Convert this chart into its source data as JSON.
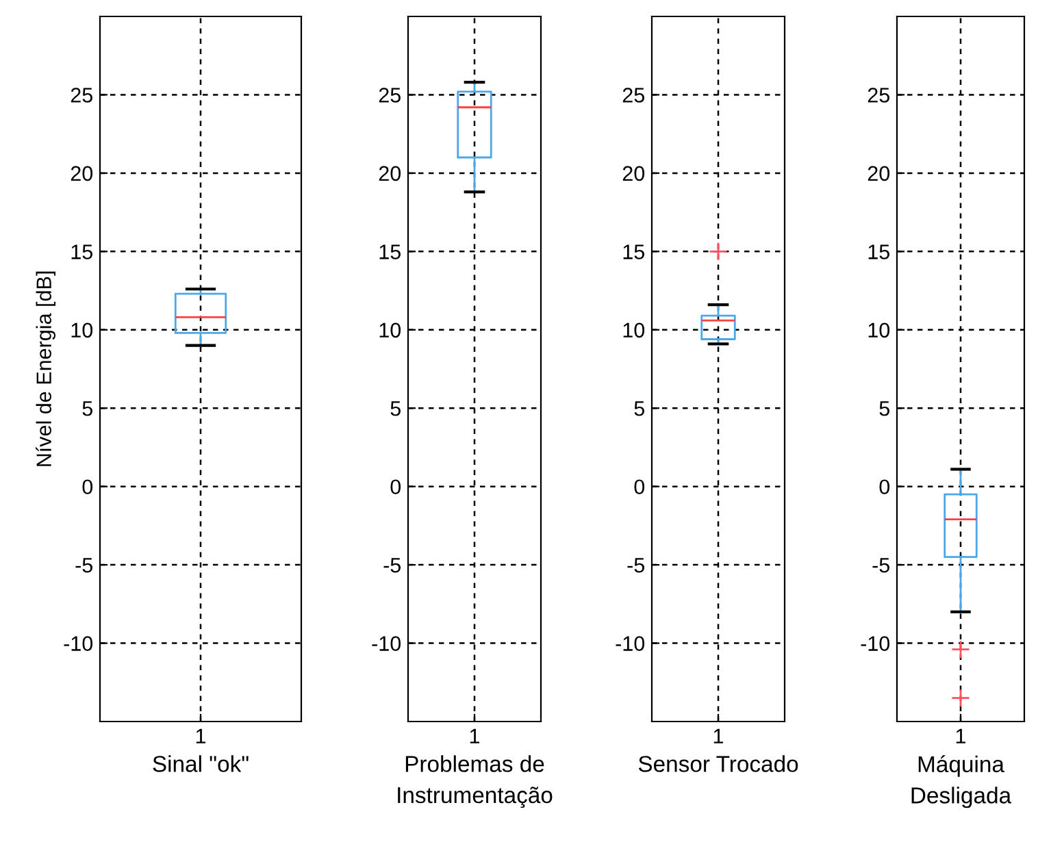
{
  "chart_data": [
    {
      "type": "box",
      "categories": [
        "1"
      ],
      "xlabel": "Sinal \"ok\"",
      "ylabel": "Nível de Energia [dB]",
      "ylim": [
        -15,
        30
      ],
      "yticks": [
        -10,
        -5,
        0,
        5,
        10,
        15,
        20,
        25
      ],
      "grid": true,
      "series": [
        {
          "color": "#4aa8e8",
          "boxes": [
            {
              "low": 9.0,
              "q1": 9.8,
              "median": 10.8,
              "q3": 12.3,
              "high": 12.6
            }
          ]
        }
      ]
    },
    {
      "type": "box",
      "categories": [
        "1"
      ],
      "xlabel": "Problemas de\nInstrumentação",
      "ylim": [
        -15,
        30
      ],
      "yticks": [
        -10,
        -5,
        0,
        5,
        10,
        15,
        20,
        25
      ],
      "grid": true,
      "series": [
        {
          "color": "#4aa8e8",
          "boxes": [
            {
              "low": 18.8,
              "q1": 21.0,
              "median": 24.2,
              "q3": 25.2,
              "high": 25.8
            }
          ]
        }
      ]
    },
    {
      "type": "box",
      "categories": [
        "1"
      ],
      "xlabel": "Sensor Trocado",
      "ylim": [
        -15,
        30
      ],
      "yticks": [
        -10,
        -5,
        0,
        5,
        10,
        15,
        20,
        25
      ],
      "grid": true,
      "series": [
        {
          "color": "#4aa8e8",
          "boxes": [
            {
              "low": 9.1,
              "q1": 9.4,
              "median": 10.6,
              "q3": 10.9,
              "high": 11.6,
              "outliers": [
                15.0
              ]
            }
          ]
        }
      ]
    },
    {
      "type": "box",
      "categories": [
        "1"
      ],
      "xlabel": "Máquina\nDesligada",
      "ylim": [
        -15,
        30
      ],
      "yticks": [
        -10,
        -5,
        0,
        5,
        10,
        15,
        20,
        25
      ],
      "grid": true,
      "series": [
        {
          "color": "#4aa8e8",
          "boxes": [
            {
              "low": -8.0,
              "q1": -4.5,
              "median": -2.1,
              "q3": -0.5,
              "high": 1.1,
              "outliers": [
                -10.4,
                -13.5
              ]
            }
          ]
        }
      ]
    }
  ]
}
